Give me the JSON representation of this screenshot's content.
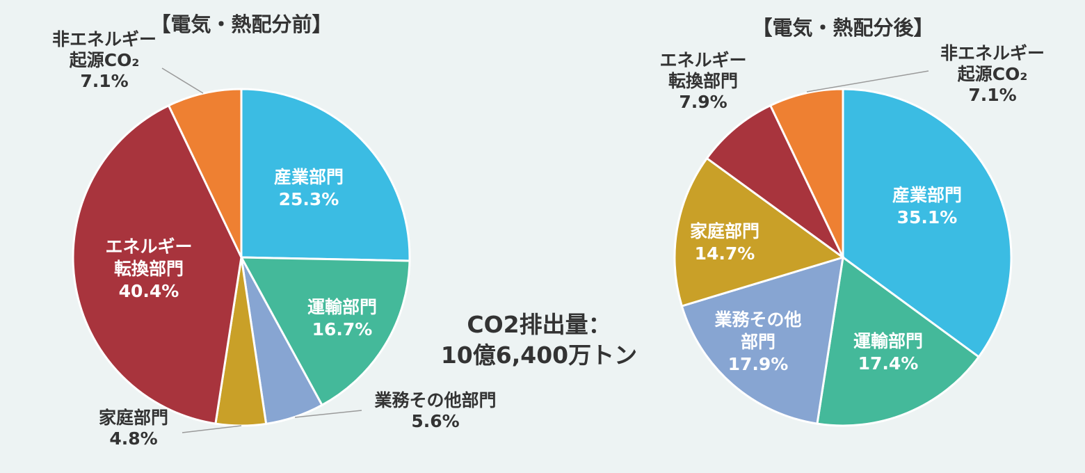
{
  "chart_data": [
    {
      "type": "pie",
      "title": "【電気・熱配分前】",
      "start_angle_deg": 0,
      "direction": "clockwise",
      "slices": [
        {
          "name": "産業部門",
          "value": 25.3,
          "label_lines": [
            "産業部門",
            "25.3%"
          ],
          "color": "#3bbce3",
          "label_pos": "inside"
        },
        {
          "name": "運輸部門",
          "value": 16.7,
          "label_lines": [
            "運輸部門",
            "16.7%"
          ],
          "color": "#44b99a",
          "label_pos": "inside"
        },
        {
          "name": "業務その他部門",
          "value": 5.6,
          "label_lines": [
            "業務その他部門",
            "5.6%"
          ],
          "color": "#87a5d2",
          "label_pos": "outside"
        },
        {
          "name": "家庭部門",
          "value": 4.8,
          "label_lines": [
            "家庭部門",
            "4.8%"
          ],
          "color": "#c9a028",
          "label_pos": "outside"
        },
        {
          "name": "エネルギー転換部門",
          "value": 40.4,
          "label_lines": [
            "エネルギー",
            "転換部門",
            "40.4%"
          ],
          "color": "#a8343d",
          "label_pos": "inside"
        },
        {
          "name": "非エネルギー起源CO2",
          "value": 7.1,
          "label_lines": [
            "非エネルギー",
            "起源CO₂",
            "7.1%"
          ],
          "color": "#ee8032",
          "label_pos": "outside"
        }
      ]
    },
    {
      "type": "pie",
      "title": "【電気・熱配分後】",
      "start_angle_deg": 0,
      "direction": "clockwise",
      "slices": [
        {
          "name": "産業部門",
          "value": 35.1,
          "label_lines": [
            "産業部門",
            "35.1%"
          ],
          "color": "#3bbce3",
          "label_pos": "inside"
        },
        {
          "name": "運輸部門",
          "value": 17.4,
          "label_lines": [
            "運輸部門",
            "17.4%"
          ],
          "color": "#44b99a",
          "label_pos": "inside"
        },
        {
          "name": "業務その他部門",
          "value": 17.9,
          "label_lines": [
            "業務その他",
            "部門",
            "17.9%"
          ],
          "color": "#87a5d2",
          "label_pos": "inside"
        },
        {
          "name": "家庭部門",
          "value": 14.7,
          "label_lines": [
            "家庭部門",
            "14.7%"
          ],
          "color": "#c9a028",
          "label_pos": "inside"
        },
        {
          "name": "エネルギー転換部門",
          "value": 7.9,
          "label_lines": [
            "エネルギー",
            "転換部門",
            "7.9%"
          ],
          "color": "#a8343d",
          "label_pos": "outside"
        },
        {
          "name": "非エネルギー起源CO2",
          "value": 7.1,
          "label_lines": [
            "非エネルギー",
            "起源CO₂",
            "7.1%"
          ],
          "color": "#ee8032",
          "label_pos": "outside"
        }
      ]
    }
  ],
  "center_text": {
    "line1": "CO2排出量：",
    "line2": "10億6,400万トン"
  }
}
